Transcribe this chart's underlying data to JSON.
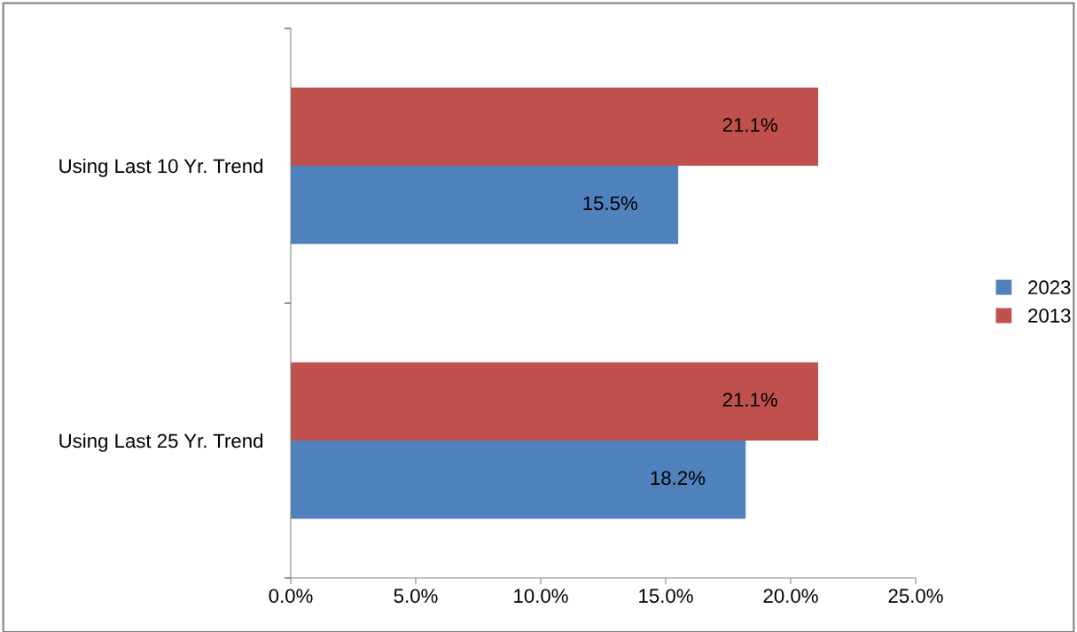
{
  "chart_data": {
    "type": "bar",
    "orientation": "horizontal",
    "categories": [
      "Using Last 10 Yr. Trend",
      "Using Last 25 Yr. Trend"
    ],
    "series": [
      {
        "name": "2013",
        "color": "#c0504d",
        "values": [
          21.1,
          21.1
        ],
        "value_labels": [
          "21.1%",
          "21.1%"
        ]
      },
      {
        "name": "2023",
        "color": "#4f81bd",
        "values": [
          15.5,
          18.2
        ],
        "value_labels": [
          "15.5%",
          "18.2%"
        ]
      }
    ],
    "xlim": [
      0,
      25
    ],
    "xticks": [
      {
        "value": 0,
        "label": "0.0%"
      },
      {
        "value": 5,
        "label": "5.0%"
      },
      {
        "value": 10,
        "label": "10.0%"
      },
      {
        "value": 15,
        "label": "15.0%"
      },
      {
        "value": 20,
        "label": "20.0%"
      },
      {
        "value": 25,
        "label": "25.0%"
      }
    ],
    "grid": false,
    "legend": "right"
  }
}
